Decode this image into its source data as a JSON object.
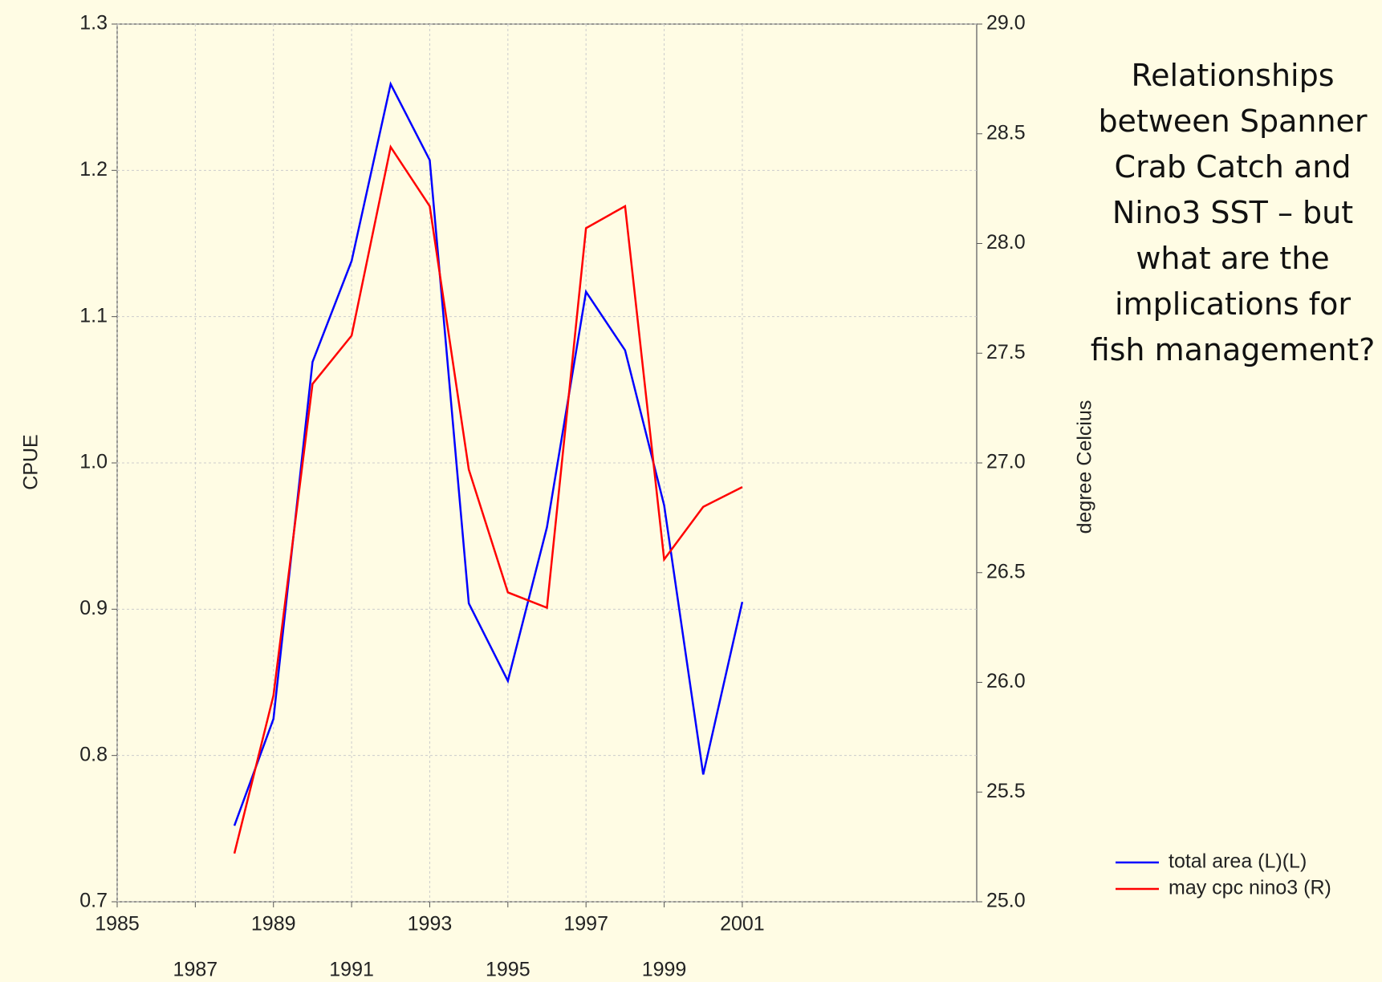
{
  "chart_data": {
    "type": "line",
    "x": [
      1988,
      1989,
      1990,
      1991,
      1992,
      1993,
      1994,
      1995,
      1996,
      1997,
      1998,
      1999,
      2000,
      2001
    ],
    "series": [
      {
        "name": "total area (L)(L)",
        "color": "#0000ff",
        "values": [
          0.752,
          0.825,
          1.069,
          1.138,
          1.259,
          1.207,
          0.904,
          0.851,
          0.956,
          1.117,
          1.077,
          0.971,
          0.787,
          0.905
        ]
      },
      {
        "name": "may cpc nino3 (R)",
        "color": "#ff0000",
        "axis": "y2",
        "values": [
          25.22,
          25.94,
          27.36,
          27.58,
          28.44,
          28.17,
          26.97,
          26.41,
          26.34,
          28.07,
          28.17,
          26.56,
          26.8,
          26.89
        ]
      }
    ],
    "xlim": [
      1985,
      2007
    ],
    "xticks": [
      1985,
      1987,
      1989,
      1991,
      1993,
      1995,
      1997,
      1999,
      2001
    ],
    "ylim": [
      0.7,
      1.3
    ],
    "yticks": [
      0.7,
      0.8,
      0.9,
      {
        "value": 1,
        "label": "1.0"
      },
      1.1,
      1.2,
      1.3
    ],
    "y2lim": [
      25,
      29
    ],
    "y2ticks": [
      {
        "value": 25,
        "label": "25.0"
      },
      {
        "value": 25.5,
        "label": "25.5"
      },
      {
        "value": 26,
        "label": "26.0"
      },
      {
        "value": 26.5,
        "label": "26.5"
      },
      {
        "value": 27,
        "label": "27.0"
      },
      {
        "value": 27.5,
        "label": "27.5"
      },
      {
        "value": 28,
        "label": "28.0"
      },
      {
        "value": 28.5,
        "label": "28.5"
      },
      {
        "value": 29,
        "label": "29.0"
      }
    ],
    "ylabel": "CPUE",
    "y2label": "degree Celcius",
    "annotation": "Relationships between Spanner Crab Catch and Nino3 SST – but what are the implications for fish management?",
    "grid": true,
    "legend": "lower right"
  }
}
